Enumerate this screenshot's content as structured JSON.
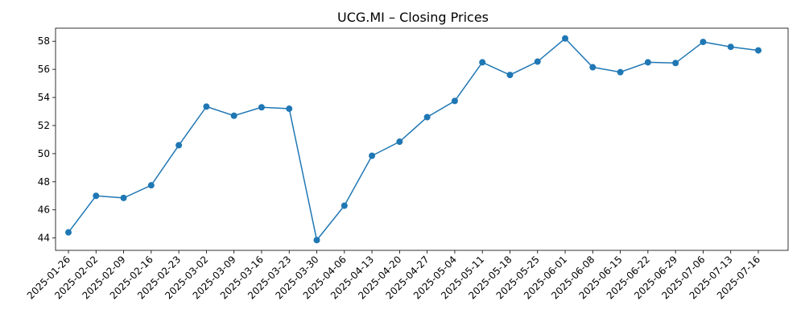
{
  "chart_data": {
    "type": "line",
    "title": "UCG.MI – Closing Prices",
    "xlabel": "",
    "ylabel": "",
    "x": [
      "2025-01-26",
      "2025-02-02",
      "2025-02-09",
      "2025-02-16",
      "2025-02-23",
      "2025-03-02",
      "2025-03-09",
      "2025-03-16",
      "2025-03-23",
      "2025-03-30",
      "2025-04-06",
      "2025-04-13",
      "2025-04-20",
      "2025-04-27",
      "2025-05-04",
      "2025-05-11",
      "2025-05-18",
      "2025-05-25",
      "2025-06-01",
      "2025-06-08",
      "2025-06-15",
      "2025-06-22",
      "2025-06-29",
      "2025-07-06",
      "2025-07-13",
      "2025-07-16"
    ],
    "series": [
      {
        "values": [
          44.4,
          47.0,
          46.85,
          47.75,
          50.6,
          53.35,
          52.7,
          53.3,
          53.2,
          43.85,
          46.3,
          49.85,
          50.85,
          52.6,
          53.75,
          56.5,
          55.6,
          56.55,
          58.2,
          56.15,
          55.8,
          56.5,
          56.45,
          57.95,
          57.6,
          57.35
        ],
        "color": "#1f77b4"
      }
    ],
    "yticks": [
      44,
      46,
      48,
      50,
      52,
      54,
      56,
      58
    ],
    "ylim": [
      43.12,
      58.93
    ],
    "grid": false,
    "legend": "none"
  }
}
